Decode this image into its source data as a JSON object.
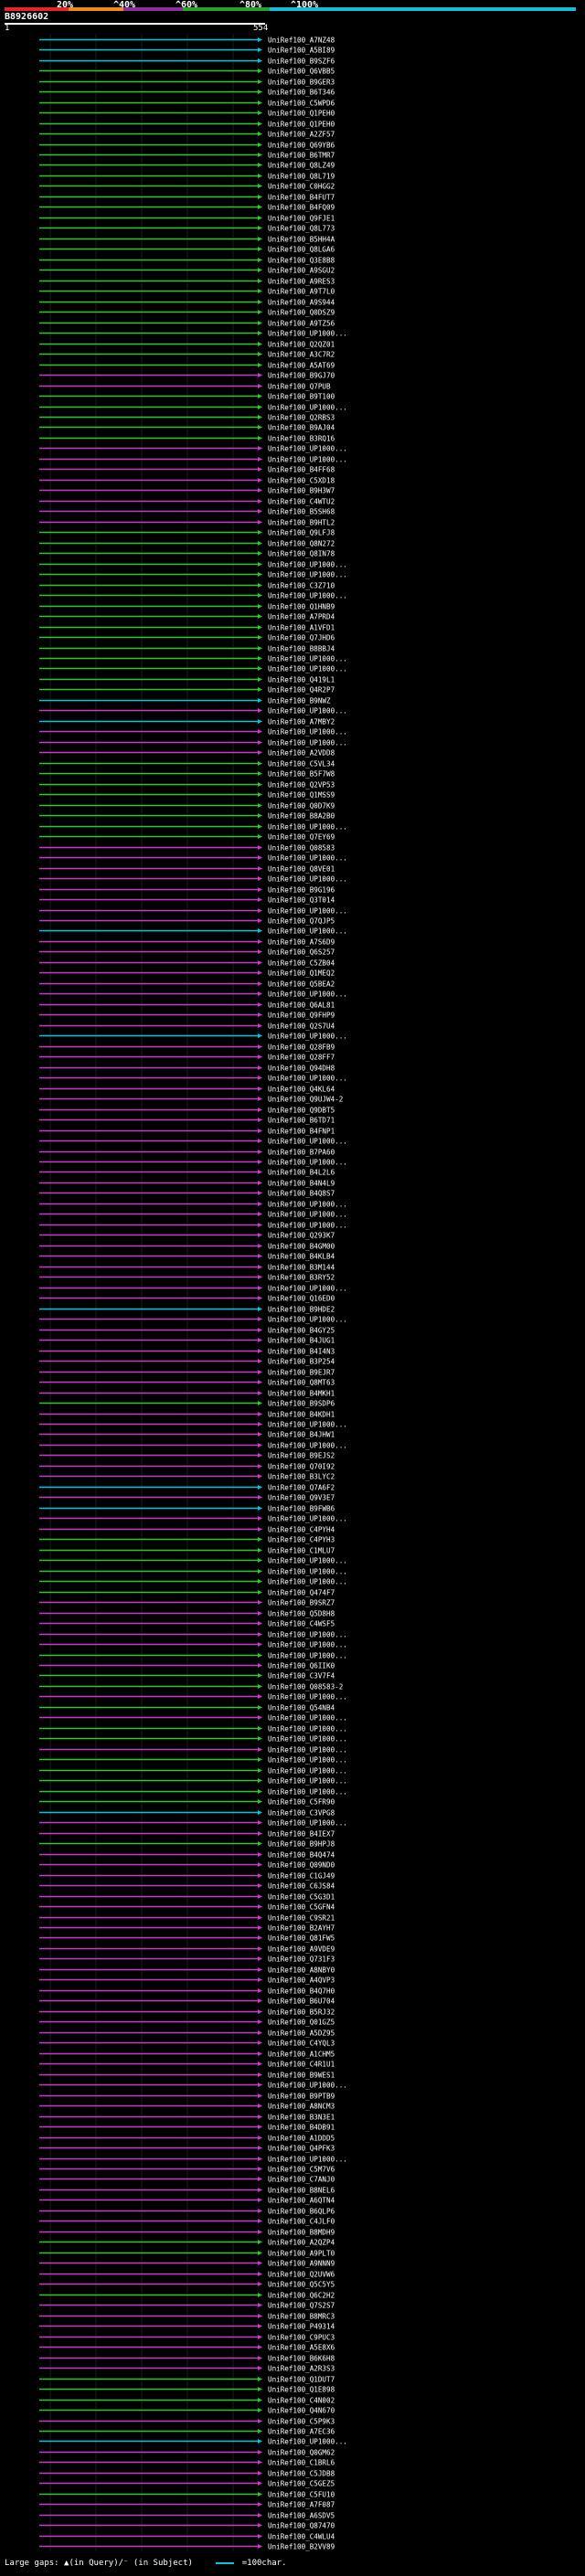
{
  "header": {
    "query_id": "B8926602",
    "pos_start": "1",
    "pos_end": "554",
    "identity_ticks": [
      "20%",
      "^40%",
      "^60%",
      "^80%",
      "^100%"
    ],
    "scale_colors": [
      "#e8232a",
      "#f08a1c",
      "#8d2ea0",
      "#27a42d",
      "#16bfd8"
    ]
  },
  "colors": {
    "cyan": "#00c8dc",
    "green": "#2ec82e",
    "magenta": "#c83cc8",
    "label": "#ffffff",
    "gap_dot": "#ffffff"
  },
  "hits": [
    {
      "label": "UniRef100_A7NZ48",
      "c": "cyan"
    },
    {
      "label": "UniRef100_A5BI89",
      "c": "cyan"
    },
    {
      "label": "UniRef100_B9SZF6",
      "c": "cyan"
    },
    {
      "label": "UniRef100_Q6VBB5",
      "c": "green"
    },
    {
      "label": "UniRef100_B9GER3",
      "c": "green"
    },
    {
      "label": "UniRef100_B6T346",
      "c": "green"
    },
    {
      "label": "UniRef100_C5WPD6",
      "c": "green"
    },
    {
      "label": "UniRef100_Q1PEH0",
      "c": "green"
    },
    {
      "label": "UniRef100_Q1PEH0",
      "c": "green"
    },
    {
      "label": "UniRef100_A2ZF57",
      "c": "green"
    },
    {
      "label": "UniRef100_Q69YB6",
      "c": "green"
    },
    {
      "label": "UniRef100_B6TMR7",
      "c": "green"
    },
    {
      "label": "UniRef100_Q8LZ49",
      "c": "green"
    },
    {
      "label": "UniRef100_Q8L719",
      "c": "green"
    },
    {
      "label": "UniRef100_C0HGG2",
      "c": "green"
    },
    {
      "label": "UniRef100_B4FUT7",
      "c": "green"
    },
    {
      "label": "UniRef100_B4FQ09",
      "c": "green"
    },
    {
      "label": "UniRef100_Q9FJE1",
      "c": "green"
    },
    {
      "label": "UniRef100_Q8L773",
      "c": "green"
    },
    {
      "label": "UniRef100_B5HH4A",
      "c": "green"
    },
    {
      "label": "UniRef100_Q8LGA6",
      "c": "green"
    },
    {
      "label": "UniRef100_Q3E8B8",
      "c": "green"
    },
    {
      "label": "UniRef100_A9SGU2",
      "c": "green"
    },
    {
      "label": "UniRef100_A9RES3",
      "c": "green"
    },
    {
      "label": "UniRef100_A9T7L0",
      "c": "green"
    },
    {
      "label": "UniRef100_A9S944",
      "c": "green"
    },
    {
      "label": "UniRef100_Q0DSZ9",
      "c": "green"
    },
    {
      "label": "UniRef100_A9TZ56",
      "c": "green"
    },
    {
      "label": "UniRef100_UP1000...",
      "c": "green"
    },
    {
      "label": "UniRef100_Q2QZ01",
      "c": "green"
    },
    {
      "label": "UniRef100_A3C7R2",
      "c": "green"
    },
    {
      "label": "UniRef100_A5AT69",
      "c": "green"
    },
    {
      "label": "UniRef100_B9GJ70",
      "c": "magenta"
    },
    {
      "label": "UniRef100_Q7PUB",
      "c": "magenta"
    },
    {
      "label": "UniRef100_B9T100",
      "c": "green"
    },
    {
      "label": "UniRef100_UP1000...",
      "c": "green"
    },
    {
      "label": "UniRef100_Q2RBS3",
      "c": "green"
    },
    {
      "label": "UniRef100_B9AJ04",
      "c": "green"
    },
    {
      "label": "UniRef100_B3RQ16",
      "c": "green"
    },
    {
      "label": "UniRef100_UP1000...",
      "c": "magenta"
    },
    {
      "label": "UniRef100_UP1000...",
      "c": "magenta"
    },
    {
      "label": "UniRef100_B4FF68",
      "c": "magenta"
    },
    {
      "label": "UniRef100_C5XD18",
      "c": "magenta"
    },
    {
      "label": "UniRef100_B9H3W7",
      "c": "magenta"
    },
    {
      "label": "UniRef100_C4WTU2",
      "c": "magenta"
    },
    {
      "label": "UniRef100_B5SH68",
      "c": "magenta"
    },
    {
      "label": "UniRef100_B9HTL2",
      "c": "magenta"
    },
    {
      "label": "UniRef100_Q9LFJ8",
      "c": "green"
    },
    {
      "label": "UniRef100_Q8N272",
      "c": "green"
    },
    {
      "label": "UniRef100_Q8IN78",
      "c": "green"
    },
    {
      "label": "UniRef100_UP1000...",
      "c": "green"
    },
    {
      "label": "UniRef100_UP1000...",
      "c": "green"
    },
    {
      "label": "UniRef100_C3Z710",
      "c": "green"
    },
    {
      "label": "UniRef100_UP1000...",
      "c": "green"
    },
    {
      "label": "UniRef100_Q1HNB9",
      "c": "green"
    },
    {
      "label": "UniRef100_A7PRD4",
      "c": "green"
    },
    {
      "label": "UniRef100_A1VFD1",
      "c": "green"
    },
    {
      "label": "UniRef100_Q7JHD6",
      "c": "green"
    },
    {
      "label": "UniRef100_B8BBJ4",
      "c": "green"
    },
    {
      "label": "UniRef100_UP1000...",
      "c": "green"
    },
    {
      "label": "UniRef100_UP1000...",
      "c": "green"
    },
    {
      "label": "UniRef100_Q419L1",
      "c": "green"
    },
    {
      "label": "UniRef100_Q4R2P7",
      "c": "green"
    },
    {
      "label": "UniRef100_B9NWZ",
      "c": "cyan"
    },
    {
      "label": "UniRef100_UP1000...",
      "c": "magenta"
    },
    {
      "label": "UniRef100_A7MBY2",
      "c": "cyan"
    },
    {
      "label": "UniRef100_UP1000...",
      "c": "magenta"
    },
    {
      "label": "UniRef100_UP1000...",
      "c": "magenta"
    },
    {
      "label": "UniRef100_A2VDD8",
      "c": "magenta"
    },
    {
      "label": "UniRef100_C5VL34",
      "c": "green"
    },
    {
      "label": "UniRef100_B5F7W8",
      "c": "green"
    },
    {
      "label": "UniRef100_Q2VP53",
      "c": "green"
    },
    {
      "label": "UniRef100_Q1MSS9",
      "c": "green"
    },
    {
      "label": "UniRef100_Q0D7K9",
      "c": "green"
    },
    {
      "label": "UniRef100_B8A2B0",
      "c": "green"
    },
    {
      "label": "UniRef100_UP1000...",
      "c": "green"
    },
    {
      "label": "UniRef100_Q7EY69",
      "c": "green"
    },
    {
      "label": "UniRef100_Q08583",
      "c": "magenta"
    },
    {
      "label": "UniRef100_UP1000...",
      "c": "magenta"
    },
    {
      "label": "UniRef100_Q8VE01",
      "c": "magenta"
    },
    {
      "label": "UniRef100_UP1000...",
      "c": "magenta"
    },
    {
      "label": "UniRef100_B9G196",
      "c": "magenta"
    },
    {
      "label": "UniRef100_Q3T014",
      "c": "magenta"
    },
    {
      "label": "UniRef100_UP1000...",
      "c": "magenta"
    },
    {
      "label": "UniRef100_Q7QJP5",
      "c": "magenta"
    },
    {
      "label": "UniRef100_UP1000...",
      "c": "cyan"
    },
    {
      "label": "UniRef100_A7S6D9",
      "c": "magenta"
    },
    {
      "label": "UniRef100_Q6S257",
      "c": "magenta"
    },
    {
      "label": "UniRef100_C5ZB04",
      "c": "magenta"
    },
    {
      "label": "UniRef100_Q1MEQ2",
      "c": "magenta"
    },
    {
      "label": "UniRef100_Q5BEA2",
      "c": "magenta"
    },
    {
      "label": "UniRef100_UP1000...",
      "c": "magenta"
    },
    {
      "label": "UniRef100_Q6AL81",
      "c": "magenta"
    },
    {
      "label": "UniRef100_Q9FHP9",
      "c": "magenta"
    },
    {
      "label": "UniRef100_Q2S7U4",
      "c": "magenta"
    },
    {
      "label": "UniRef100_UP1000...",
      "c": "cyan"
    },
    {
      "label": "UniRef100_Q28FB9",
      "c": "magenta"
    },
    {
      "label": "UniRef100_Q28FF7",
      "c": "magenta"
    },
    {
      "label": "UniRef100_Q94DH8",
      "c": "magenta"
    },
    {
      "label": "UniRef100_UP1000...",
      "c": "magenta"
    },
    {
      "label": "UniRef100_Q4KL64",
      "c": "magenta"
    },
    {
      "label": "UniRef100_Q9UJW4-2",
      "c": "magenta"
    },
    {
      "label": "UniRef100_Q9DBT5",
      "c": "magenta"
    },
    {
      "label": "UniRef100_B6TD71",
      "c": "magenta"
    },
    {
      "label": "UniRef100_B4FNP1",
      "c": "magenta"
    },
    {
      "label": "UniRef100_UP1000...",
      "c": "magenta"
    },
    {
      "label": "UniRef100_B7PA60",
      "c": "magenta"
    },
    {
      "label": "UniRef100_UP1000...",
      "c": "magenta"
    },
    {
      "label": "UniRef100_B4L2L6",
      "c": "magenta"
    },
    {
      "label": "UniRef100_B4N4L9",
      "c": "magenta"
    },
    {
      "label": "UniRef100_B4Q8S7",
      "c": "magenta"
    },
    {
      "label": "UniRef100_UP1000...",
      "c": "magenta"
    },
    {
      "label": "UniRef100_UP1000...",
      "c": "magenta"
    },
    {
      "label": "UniRef100_UP1000...",
      "c": "magenta"
    },
    {
      "label": "UniRef100_Q293K7",
      "c": "magenta"
    },
    {
      "label": "UniRef100_B4GM00",
      "c": "magenta"
    },
    {
      "label": "UniRef100_B4KLB4",
      "c": "magenta"
    },
    {
      "label": "UniRef100_B3M144",
      "c": "magenta"
    },
    {
      "label": "UniRef100_B3RY52",
      "c": "magenta"
    },
    {
      "label": "UniRef100_UP1000...",
      "c": "magenta"
    },
    {
      "label": "UniRef100_Q16ED0",
      "c": "magenta"
    },
    {
      "label": "UniRef100_B9HDE2",
      "c": "cyan"
    },
    {
      "label": "UniRef100_UP1000...",
      "c": "magenta"
    },
    {
      "label": "UniRef100_B4GY25",
      "c": "magenta"
    },
    {
      "label": "UniRef100_B4JUG1",
      "c": "magenta"
    },
    {
      "label": "UniRef100_B4I4N3",
      "c": "magenta"
    },
    {
      "label": "UniRef100_B3P254",
      "c": "magenta"
    },
    {
      "label": "UniRef100_B9EJR7",
      "c": "magenta"
    },
    {
      "label": "UniRef100_Q8MT63",
      "c": "magenta"
    },
    {
      "label": "UniRef100_B4MKH1",
      "c": "magenta"
    },
    {
      "label": "UniRef100_B9SDP6",
      "c": "green"
    },
    {
      "label": "UniRef100_B4KDH1",
      "c": "magenta"
    },
    {
      "label": "UniRef100_UP1000...",
      "c": "magenta"
    },
    {
      "label": "UniRef100_B4JHW1",
      "c": "magenta"
    },
    {
      "label": "UniRef100_UP1000...",
      "c": "magenta"
    },
    {
      "label": "UniRef100_B9EJS2",
      "c": "magenta"
    },
    {
      "label": "UniRef100_Q70I92",
      "c": "magenta"
    },
    {
      "label": "UniRef100_B3LYC2",
      "c": "magenta"
    },
    {
      "label": "UniRef100_Q7A6F2",
      "c": "cyan"
    },
    {
      "label": "UniRef100_Q9V3E7",
      "c": "magenta"
    },
    {
      "label": "UniRef100_B9FWB6",
      "c": "cyan"
    },
    {
      "label": "UniRef100_UP1000...",
      "c": "magenta"
    },
    {
      "label": "UniRef100_C4PYH4",
      "c": "magenta"
    },
    {
      "label": "UniRef100_C4PYH3",
      "c": "green"
    },
    {
      "label": "UniRef100_C1MLU7",
      "c": "green"
    },
    {
      "label": "UniRef100_UP1000...",
      "c": "green"
    },
    {
      "label": "UniRef100_UP1000...",
      "c": "green"
    },
    {
      "label": "UniRef100_UP1000...",
      "c": "green"
    },
    {
      "label": "UniRef100_Q474F7",
      "c": "green"
    },
    {
      "label": "UniRef100_B9SRZ7",
      "c": "magenta"
    },
    {
      "label": "UniRef100_Q5D8H8",
      "c": "magenta"
    },
    {
      "label": "UniRef100_C4WSF5",
      "c": "magenta"
    },
    {
      "label": "UniRef100_UP1000...",
      "c": "magenta"
    },
    {
      "label": "UniRef100_UP1000...",
      "c": "magenta"
    },
    {
      "label": "UniRef100_UP1000...",
      "c": "green"
    },
    {
      "label": "UniRef100_Q6IIK0",
      "c": "magenta"
    },
    {
      "label": "UniRef100_C3V7F4",
      "c": "green"
    },
    {
      "label": "UniRef100_Q08583-2",
      "c": "green"
    },
    {
      "label": "UniRef100_UP1000...",
      "c": "magenta"
    },
    {
      "label": "UniRef100_Q54NB4",
      "c": "green"
    },
    {
      "label": "UniRef100_UP1000...",
      "c": "magenta"
    },
    {
      "label": "UniRef100_UP1000...",
      "c": "green"
    },
    {
      "label": "UniRef100_UP1000...",
      "c": "green"
    },
    {
      "label": "UniRef100_UP1000...",
      "c": "magenta"
    },
    {
      "label": "UniRef100_UP1000...",
      "c": "green"
    },
    {
      "label": "UniRef100_UP1000...",
      "c": "green"
    },
    {
      "label": "UniRef100_UP1000...",
      "c": "green"
    },
    {
      "label": "UniRef100_UP1000...",
      "c": "green"
    },
    {
      "label": "UniRef100_C5FR90",
      "c": "green"
    },
    {
      "label": "UniRef100_C3VPG8",
      "c": "cyan"
    },
    {
      "label": "UniRef100_UP1000...",
      "c": "magenta"
    },
    {
      "label": "UniRef100_B4IEX7",
      "c": "magenta"
    },
    {
      "label": "UniRef100_B9HPJ8",
      "c": "green"
    },
    {
      "label": "UniRef100_B4Q474",
      "c": "magenta"
    },
    {
      "label": "UniRef100_Q09ND0",
      "c": "magenta"
    },
    {
      "label": "UniRef100_C1GJ49",
      "c": "magenta"
    },
    {
      "label": "UniRef100_C6JS84",
      "c": "magenta"
    },
    {
      "label": "UniRef100_C5G3D1",
      "c": "magenta"
    },
    {
      "label": "UniRef100_C5GFN4",
      "c": "magenta"
    },
    {
      "label": "UniRef100_C9SR21",
      "c": "magenta"
    },
    {
      "label": "UniRef100_B2AYH7",
      "c": "magenta"
    },
    {
      "label": "UniRef100_Q81FW5",
      "c": "magenta"
    },
    {
      "label": "UniRef100_A9VDE9",
      "c": "magenta"
    },
    {
      "label": "UniRef100_Q731F3",
      "c": "magenta"
    },
    {
      "label": "UniRef100_A8NBY0",
      "c": "magenta"
    },
    {
      "label": "UniRef100_A4QVP3",
      "c": "magenta"
    },
    {
      "label": "UniRef100_B4Q7H0",
      "c": "magenta"
    },
    {
      "label": "UniRef100_B6U704",
      "c": "magenta"
    },
    {
      "label": "UniRef100_B5RJ32",
      "c": "magenta"
    },
    {
      "label": "UniRef100_Q01GZ5",
      "c": "magenta"
    },
    {
      "label": "UniRef100_A5DZ95",
      "c": "magenta"
    },
    {
      "label": "UniRef100_C4YQL3",
      "c": "magenta"
    },
    {
      "label": "UniRef100_A1CHM5",
      "c": "magenta"
    },
    {
      "label": "UniRef100_C4R1U1",
      "c": "magenta"
    },
    {
      "label": "UniRef100_B9WES1",
      "c": "magenta"
    },
    {
      "label": "UniRef100_UP1000...",
      "c": "magenta"
    },
    {
      "label": "UniRef100_B9PTB9",
      "c": "magenta"
    },
    {
      "label": "UniRef100_A8NCM3",
      "c": "magenta"
    },
    {
      "label": "UniRef100_B3N3E1",
      "c": "magenta"
    },
    {
      "label": "UniRef100_B4DB91",
      "c": "magenta"
    },
    {
      "label": "UniRef100_A1DDD5",
      "c": "magenta"
    },
    {
      "label": "UniRef100_Q4PFK3",
      "c": "magenta"
    },
    {
      "label": "UniRef100_UP1000...",
      "c": "magenta"
    },
    {
      "label": "UniRef100_C5M7V6",
      "c": "magenta"
    },
    {
      "label": "UniRef100_C7ANJ0",
      "c": "magenta"
    },
    {
      "label": "UniRef100_B8NEL6",
      "c": "magenta"
    },
    {
      "label": "UniRef100_A6QTN4",
      "c": "magenta"
    },
    {
      "label": "UniRef100_B6QLP6",
      "c": "magenta"
    },
    {
      "label": "UniRef100_C4JLF0",
      "c": "magenta"
    },
    {
      "label": "UniRef100_B8MDH9",
      "c": "magenta"
    },
    {
      "label": "UniRef100_A2QZP4",
      "c": "green"
    },
    {
      "label": "UniRef100_A9PLT0",
      "c": "green"
    },
    {
      "label": "UniRef100_A9NNN9",
      "c": "magenta"
    },
    {
      "label": "UniRef100_Q2UVW6",
      "c": "magenta"
    },
    {
      "label": "UniRef100_Q5C5Y5",
      "c": "magenta"
    },
    {
      "label": "UniRef100_Q6C2H2",
      "c": "green"
    },
    {
      "label": "UniRef100_Q7S2S7",
      "c": "magenta"
    },
    {
      "label": "UniRef100_B8MRC3",
      "c": "magenta"
    },
    {
      "label": "UniRef100_P49314",
      "c": "magenta"
    },
    {
      "label": "UniRef100_C9PUC3",
      "c": "magenta"
    },
    {
      "label": "UniRef100_A5E8X6",
      "c": "magenta"
    },
    {
      "label": "UniRef100_B6K6H8",
      "c": "magenta"
    },
    {
      "label": "UniRef100_A2R3S3",
      "c": "magenta"
    },
    {
      "label": "UniRef100_Q1DUT7",
      "c": "green"
    },
    {
      "label": "UniRef100_Q1E898",
      "c": "green"
    },
    {
      "label": "UniRef100_C4N002",
      "c": "green"
    },
    {
      "label": "UniRef100_Q4N670",
      "c": "green"
    },
    {
      "label": "UniRef100_C5P9K3",
      "c": "magenta"
    },
    {
      "label": "UniRef100_A7EC36",
      "c": "green"
    },
    {
      "label": "UniRef100_UP1000...",
      "c": "cyan"
    },
    {
      "label": "UniRef100_Q0GM62",
      "c": "magenta"
    },
    {
      "label": "UniRef100_C1BRL6",
      "c": "magenta"
    },
    {
      "label": "UniRef100_C5JDB8",
      "c": "magenta"
    },
    {
      "label": "UniRef100_C5GEZ5",
      "c": "magenta"
    },
    {
      "label": "UniRef100_C5FU10",
      "c": "green"
    },
    {
      "label": "UniRef100_A7F087",
      "c": "magenta"
    },
    {
      "label": "UniRef100_A6SDV5",
      "c": "magenta"
    },
    {
      "label": "UniRef100_Q87470",
      "c": "magenta"
    },
    {
      "label": "UniRef100_C4WLU4",
      "c": "magenta"
    },
    {
      "label": "UniRef100_B2VV89",
      "c": "magenta"
    }
  ],
  "footer": {
    "large_gaps_text": "Large gaps: ▲(in Query)/⁻ (in Subject)",
    "legend_text": "=100char."
  }
}
